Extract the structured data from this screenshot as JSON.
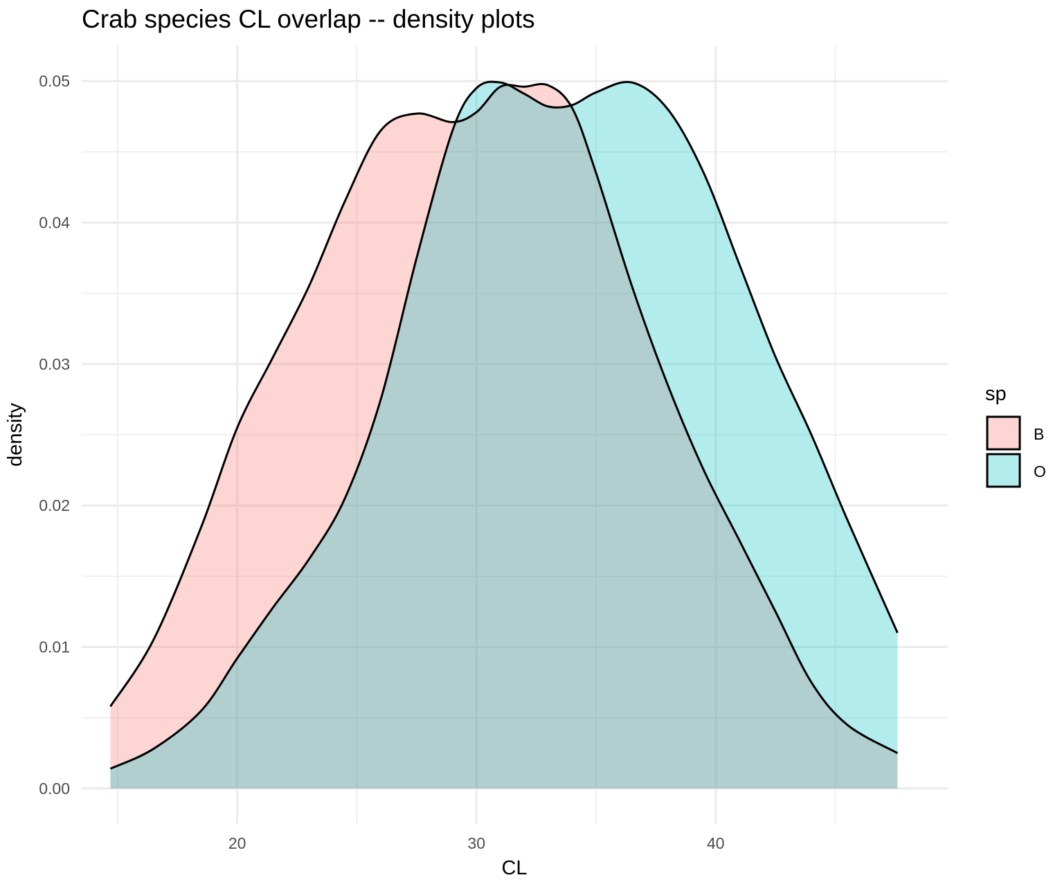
{
  "chart_data": {
    "type": "area",
    "subtype": "density",
    "title": "Crab species CL overlap -- density plots",
    "xlabel": "CL",
    "ylabel": "density",
    "xlim": [
      13.5,
      49.7
    ],
    "ylim": [
      -0.0025,
      0.0525
    ],
    "x_ticks": [
      20,
      30,
      40
    ],
    "x_tick_labels": [
      "20",
      "30",
      "40"
    ],
    "y_ticks": [
      0,
      0.01,
      0.02,
      0.03,
      0.04,
      0.05
    ],
    "y_tick_labels": [
      "0.00",
      "0.01",
      "0.02",
      "0.03",
      "0.04",
      "0.05"
    ],
    "x_minor_ticks": [
      15,
      25,
      35,
      45
    ],
    "y_minor_ticks": [
      0.005,
      0.015,
      0.025,
      0.035,
      0.045
    ],
    "grid": true,
    "legend": {
      "title": "sp",
      "position": "right"
    },
    "fill_opacity": 0.3,
    "series": [
      {
        "name": "B",
        "color": "#F8766D",
        "x": [
          14.7,
          16.5,
          18.5,
          20,
          21.5,
          23,
          24.5,
          26,
          27.5,
          29,
          30,
          31,
          32,
          33,
          34,
          35,
          36.5,
          38,
          39.5,
          41,
          42.5,
          44,
          45.5,
          47.6
        ],
        "y": [
          0.0058,
          0.0105,
          0.0185,
          0.0255,
          0.0305,
          0.0355,
          0.0415,
          0.0465,
          0.0477,
          0.0471,
          0.0478,
          0.0496,
          0.0496,
          0.0497,
          0.0481,
          0.0435,
          0.0355,
          0.0285,
          0.0225,
          0.0175,
          0.0125,
          0.0075,
          0.0045,
          0.0025
        ]
      },
      {
        "name": "O",
        "color": "#00BFC4",
        "x": [
          14.7,
          16.5,
          18.5,
          20,
          21.5,
          23,
          24.5,
          26,
          27.5,
          29,
          30,
          31,
          32,
          33,
          34,
          35,
          36.5,
          38,
          39.5,
          41,
          42.5,
          44,
          45.5,
          47.6
        ],
        "y": [
          0.0014,
          0.0028,
          0.0055,
          0.0092,
          0.0128,
          0.0162,
          0.0205,
          0.0275,
          0.0375,
          0.0465,
          0.0495,
          0.0499,
          0.0491,
          0.0482,
          0.0483,
          0.0492,
          0.0499,
          0.048,
          0.0435,
          0.037,
          0.0305,
          0.025,
          0.019,
          0.011
        ]
      }
    ]
  }
}
